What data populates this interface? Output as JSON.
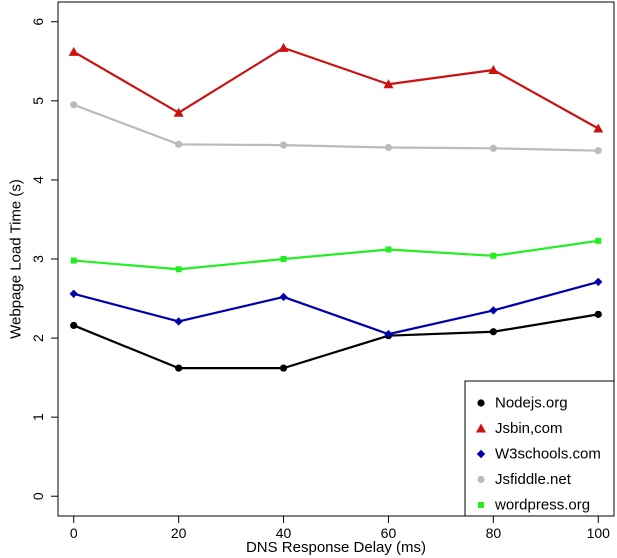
{
  "chart_data": {
    "type": "line",
    "title": "",
    "xlabel": "DNS Response Delay (ms)",
    "ylabel": "Webpage Load Time (s)",
    "x": [
      0,
      20,
      40,
      60,
      80,
      100
    ],
    "xlim": [
      -3,
      103
    ],
    "ylim": [
      -0.25,
      6.25
    ],
    "xticks": [
      "0",
      "20",
      "40",
      "60",
      "80",
      "100"
    ],
    "yticks": [
      "0",
      "1",
      "2",
      "3",
      "4",
      "5",
      "6"
    ],
    "grid": false,
    "legend_position": "bottom-right",
    "series": [
      {
        "name": "Nodejs.org",
        "color": "#000000",
        "marker": "circle",
        "values": [
          2.16,
          1.62,
          1.62,
          2.03,
          2.08,
          2.3
        ]
      },
      {
        "name": "Jsbin,com",
        "color": "#cc1111",
        "marker": "triangle",
        "values": [
          5.62,
          4.85,
          5.67,
          5.21,
          5.39,
          4.65
        ]
      },
      {
        "name": "W3schools.com",
        "color": "#0000aa",
        "marker": "diamond",
        "values": [
          2.56,
          2.21,
          2.52,
          2.05,
          2.35,
          2.71
        ]
      },
      {
        "name": "Jsfiddle.net",
        "color": "#bbbbbb",
        "marker": "circle",
        "values": [
          4.95,
          4.45,
          4.44,
          4.41,
          4.4,
          4.37
        ]
      },
      {
        "name": "wordpress.org",
        "color": "#22ee22",
        "marker": "square",
        "values": [
          2.98,
          2.87,
          3.0,
          3.12,
          3.04,
          3.23
        ]
      }
    ]
  }
}
